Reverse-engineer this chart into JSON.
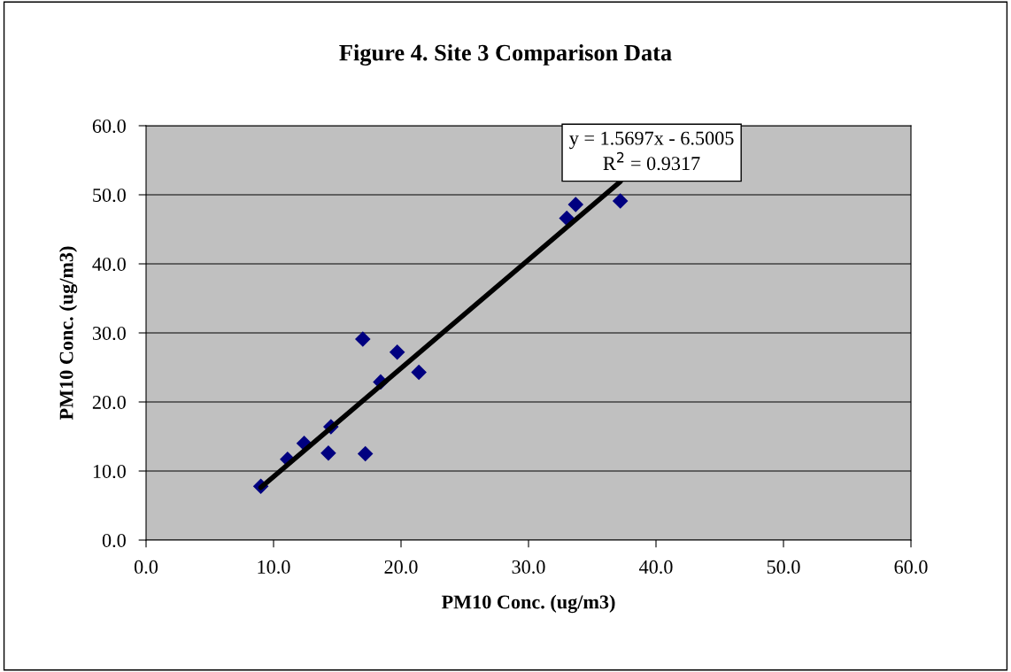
{
  "chart_data": {
    "type": "scatter",
    "title": "Figure 4. Site 3 Comparison Data",
    "xlabel": "PM10 Conc. (ug/m3)",
    "ylabel": "PM10 Conc. (ug/m3)",
    "annotations": [
      "y = 1.5697x - 6.5005",
      "R$^{2}$ = 0.9317"
    ],
    "series": [
      {
        "color": "#000080",
        "marker": "diamond",
        "x": [
          9.0,
          11.1,
          12.4,
          14.3,
          14.5,
          17.0,
          17.2,
          18.4,
          19.7,
          21.4,
          33.0,
          33.7,
          37.2
        ],
        "values": [
          7.8,
          11.7,
          14.0,
          12.6,
          16.4,
          29.1,
          12.5,
          22.9,
          27.2,
          24.3,
          46.6,
          48.6,
          49.1
        ]
      },
      {
        "type": "line",
        "color": "#000000",
        "marker": "none",
        "x": [
          9.0,
          37.2
        ],
        "values": [
          7.6,
          51.9
        ]
      }
    ],
    "xlim": [
      0,
      60
    ],
    "ylim": [
      0,
      60
    ],
    "xticks": [
      {
        "value": 0,
        "label": "0.0"
      },
      {
        "value": 10,
        "label": "10.0"
      },
      {
        "value": 20,
        "label": "20.0"
      },
      {
        "value": 30,
        "label": "30.0"
      },
      {
        "value": 40,
        "label": "40.0"
      },
      {
        "value": 50,
        "label": "50.0"
      },
      {
        "value": 60,
        "label": "60.0"
      }
    ],
    "yticks": [
      {
        "value": 0,
        "label": "0.0"
      },
      {
        "value": 10,
        "label": "10.0"
      },
      {
        "value": 20,
        "label": "20.0"
      },
      {
        "value": 30,
        "label": "30.0"
      },
      {
        "value": 40,
        "label": "40.0"
      },
      {
        "value": 50,
        "label": "50.0"
      },
      {
        "value": 60,
        "label": "60.0"
      }
    ],
    "grid": "y",
    "legend": false
  }
}
